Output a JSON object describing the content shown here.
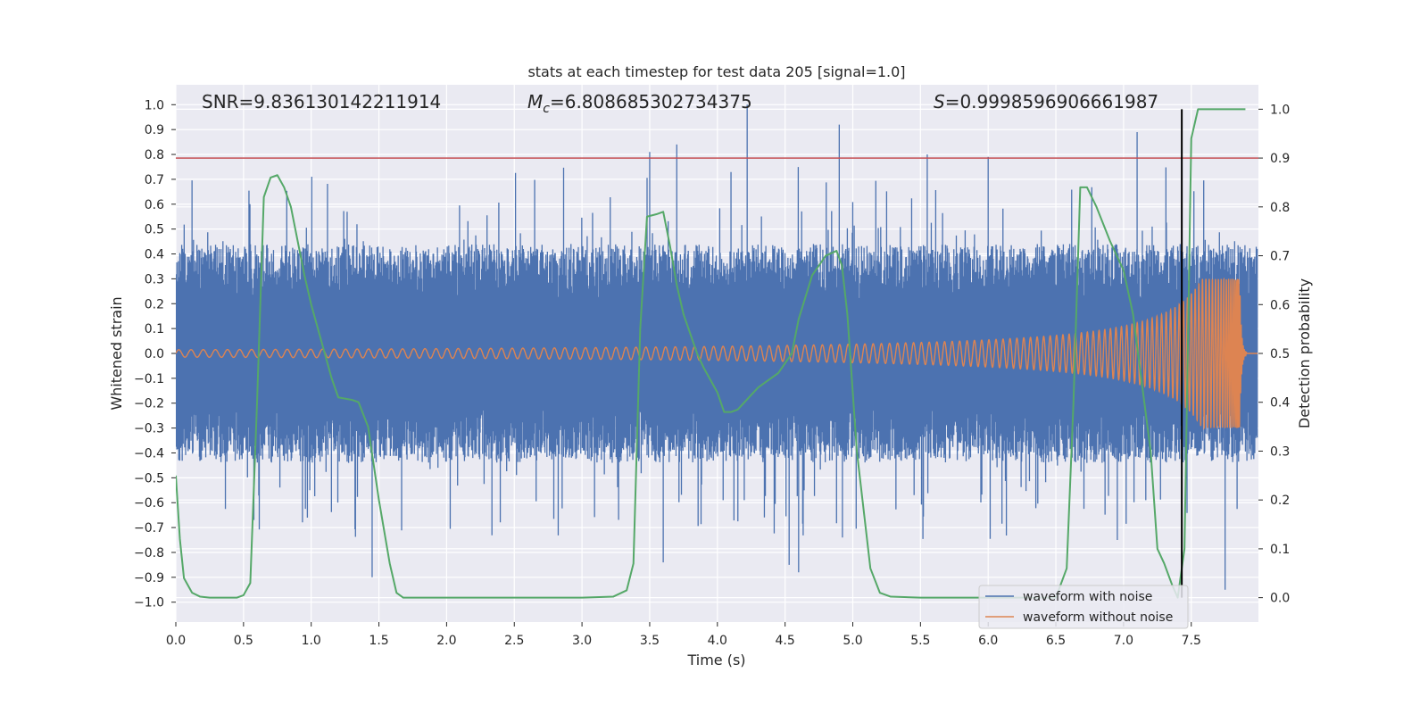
{
  "chart_data": {
    "type": "line",
    "title": "stats at each timestep for test data 205 [signal=1.0]",
    "xlabel": "Time (s)",
    "ylabel": "Whitened strain",
    "y2label": "Detection probability",
    "xlim": [
      0.0,
      8.0
    ],
    "ylim": [
      -1.08,
      1.08
    ],
    "y2lim": [
      -0.05,
      1.05
    ],
    "x_ticks": [
      0.0,
      0.5,
      1.0,
      1.5,
      2.0,
      2.5,
      3.0,
      3.5,
      4.0,
      4.5,
      5.0,
      5.5,
      6.0,
      6.5,
      7.0,
      7.5
    ],
    "y_ticks": [
      -1.0,
      -0.9,
      -0.8,
      -0.7,
      -0.6,
      -0.5,
      -0.4,
      -0.3,
      -0.2,
      -0.1,
      0.0,
      0.1,
      0.2,
      0.3,
      0.4,
      0.5,
      0.6,
      0.7,
      0.8,
      0.9,
      1.0
    ],
    "y2_ticks": [
      0.0,
      0.1,
      0.2,
      0.3,
      0.4,
      0.5,
      0.6,
      0.7,
      0.8,
      0.9,
      1.0
    ],
    "grid": true,
    "legend_position": "lower-right",
    "annotations": {
      "snr": "SNR=9.836130142211914",
      "mc_symbol": "M",
      "mc_sub": "c",
      "mc_value": "=6.808685302734375",
      "s_symbol": "S",
      "s_value": "=0.9998596906661987"
    },
    "threshold_line": {
      "axis": "y2",
      "value": 0.9,
      "color": "#c44e52"
    },
    "vertical_line": {
      "x": 7.43,
      "color": "#000000"
    },
    "series": [
      {
        "name": "waveform with noise",
        "color": "#4c72b0",
        "axis": "y",
        "description": "whitened strain with noise; envelope approx ±0.45 with spikes",
        "peaks": [
          {
            "x": 4.22,
            "y": 1.0
          },
          {
            "x": 4.9,
            "y": 0.92
          },
          {
            "x": 7.1,
            "y": 0.89
          },
          {
            "x": 3.7,
            "y": 0.84
          },
          {
            "x": 3.5,
            "y": 0.81
          },
          {
            "x": 5.55,
            "y": 0.8
          },
          {
            "x": 6.0,
            "y": 0.79
          },
          {
            "x": 7.75,
            "y": -0.95
          },
          {
            "x": 1.45,
            "y": -0.9
          },
          {
            "x": 4.6,
            "y": -0.88
          },
          {
            "x": 3.6,
            "y": -0.84
          },
          {
            "x": 4.53,
            "y": -0.85
          }
        ]
      },
      {
        "name": "waveform without noise",
        "color": "#dd8452",
        "axis": "y",
        "description": "chirp signal; amplitude grows from ~0.015 to ~0.3 near 7.85 s then ends",
        "amplitude_start": 0.015,
        "amplitude_end": 0.3,
        "merger_time": 7.86
      },
      {
        "name": "Detection probability",
        "color": "#55a868",
        "axis": "y2",
        "x": [
          0.0,
          0.03,
          0.06,
          0.12,
          0.18,
          0.25,
          0.35,
          0.45,
          0.5,
          0.55,
          0.6,
          0.65,
          0.7,
          0.75,
          0.8,
          0.85,
          0.9,
          0.95,
          1.0,
          1.05,
          1.1,
          1.15,
          1.2,
          1.3,
          1.35,
          1.42,
          1.5,
          1.58,
          1.63,
          1.68,
          2.0,
          2.5,
          3.0,
          3.23,
          3.33,
          3.38,
          3.43,
          3.48,
          3.55,
          3.6,
          3.65,
          3.7,
          3.75,
          3.8,
          3.85,
          3.9,
          4.0,
          4.05,
          4.1,
          4.15,
          4.2,
          4.3,
          4.35,
          4.45,
          4.55,
          4.6,
          4.7,
          4.8,
          4.88,
          4.92,
          4.96,
          5.03,
          5.13,
          5.2,
          5.28,
          5.5,
          6.0,
          6.5,
          6.58,
          6.63,
          6.68,
          6.73,
          6.8,
          6.9,
          7.0,
          7.07,
          7.13,
          7.2,
          7.25,
          7.3,
          7.36,
          7.4,
          7.45,
          7.48,
          7.5,
          7.55,
          7.6,
          7.9
        ],
        "values": [
          0.25,
          0.12,
          0.04,
          0.01,
          0.002,
          0.0,
          0.0,
          0.0,
          0.005,
          0.03,
          0.4,
          0.82,
          0.86,
          0.865,
          0.84,
          0.8,
          0.73,
          0.66,
          0.6,
          0.55,
          0.5,
          0.45,
          0.41,
          0.405,
          0.4,
          0.35,
          0.2,
          0.07,
          0.01,
          0.0,
          0.0,
          0.0,
          0.0,
          0.002,
          0.015,
          0.07,
          0.55,
          0.78,
          0.785,
          0.79,
          0.72,
          0.64,
          0.58,
          0.54,
          0.5,
          0.47,
          0.42,
          0.38,
          0.38,
          0.385,
          0.4,
          0.43,
          0.44,
          0.46,
          0.5,
          0.57,
          0.66,
          0.7,
          0.71,
          0.68,
          0.58,
          0.3,
          0.06,
          0.01,
          0.002,
          0.0,
          0.0,
          0.0,
          0.06,
          0.4,
          0.84,
          0.84,
          0.8,
          0.73,
          0.67,
          0.58,
          0.45,
          0.3,
          0.1,
          0.07,
          0.025,
          0.0,
          0.1,
          0.6,
          0.94,
          1.0,
          1.0,
          1.0
        ]
      }
    ]
  }
}
